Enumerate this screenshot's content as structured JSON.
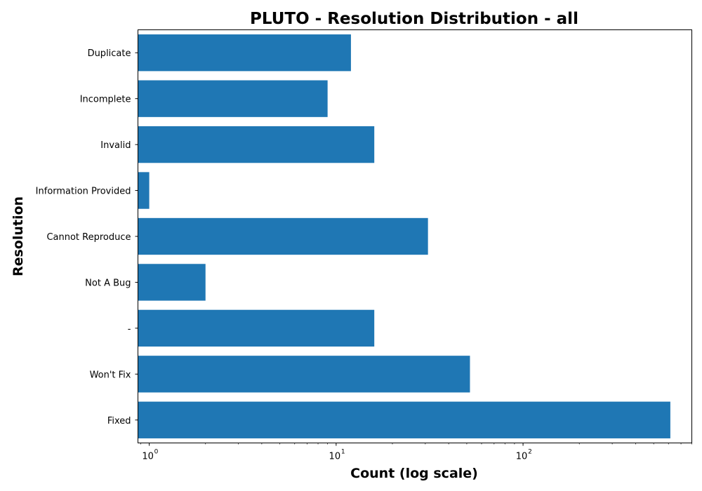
{
  "chart_data": {
    "type": "bar",
    "orientation": "horizontal",
    "title": "PLUTO - Resolution Distribution - all",
    "xlabel": "Count (log scale)",
    "ylabel": "Resolution",
    "x_scale": "log",
    "xlim": [
      0.87,
      800
    ],
    "x_ticks": [
      {
        "base": "10",
        "exp": "0"
      },
      {
        "base": "10",
        "exp": "1"
      },
      {
        "base": "10",
        "exp": "2"
      }
    ],
    "categories": [
      "Fixed",
      "Won't Fix",
      "-",
      "Not A Bug",
      "Cannot Reproduce",
      "Information Provided",
      "Invalid",
      "Incomplete",
      "Duplicate"
    ],
    "values": [
      614,
      52,
      16,
      2,
      31,
      1,
      16,
      9,
      12
    ],
    "bar_color": "#1f77b4",
    "grid": false,
    "legend": "none"
  }
}
